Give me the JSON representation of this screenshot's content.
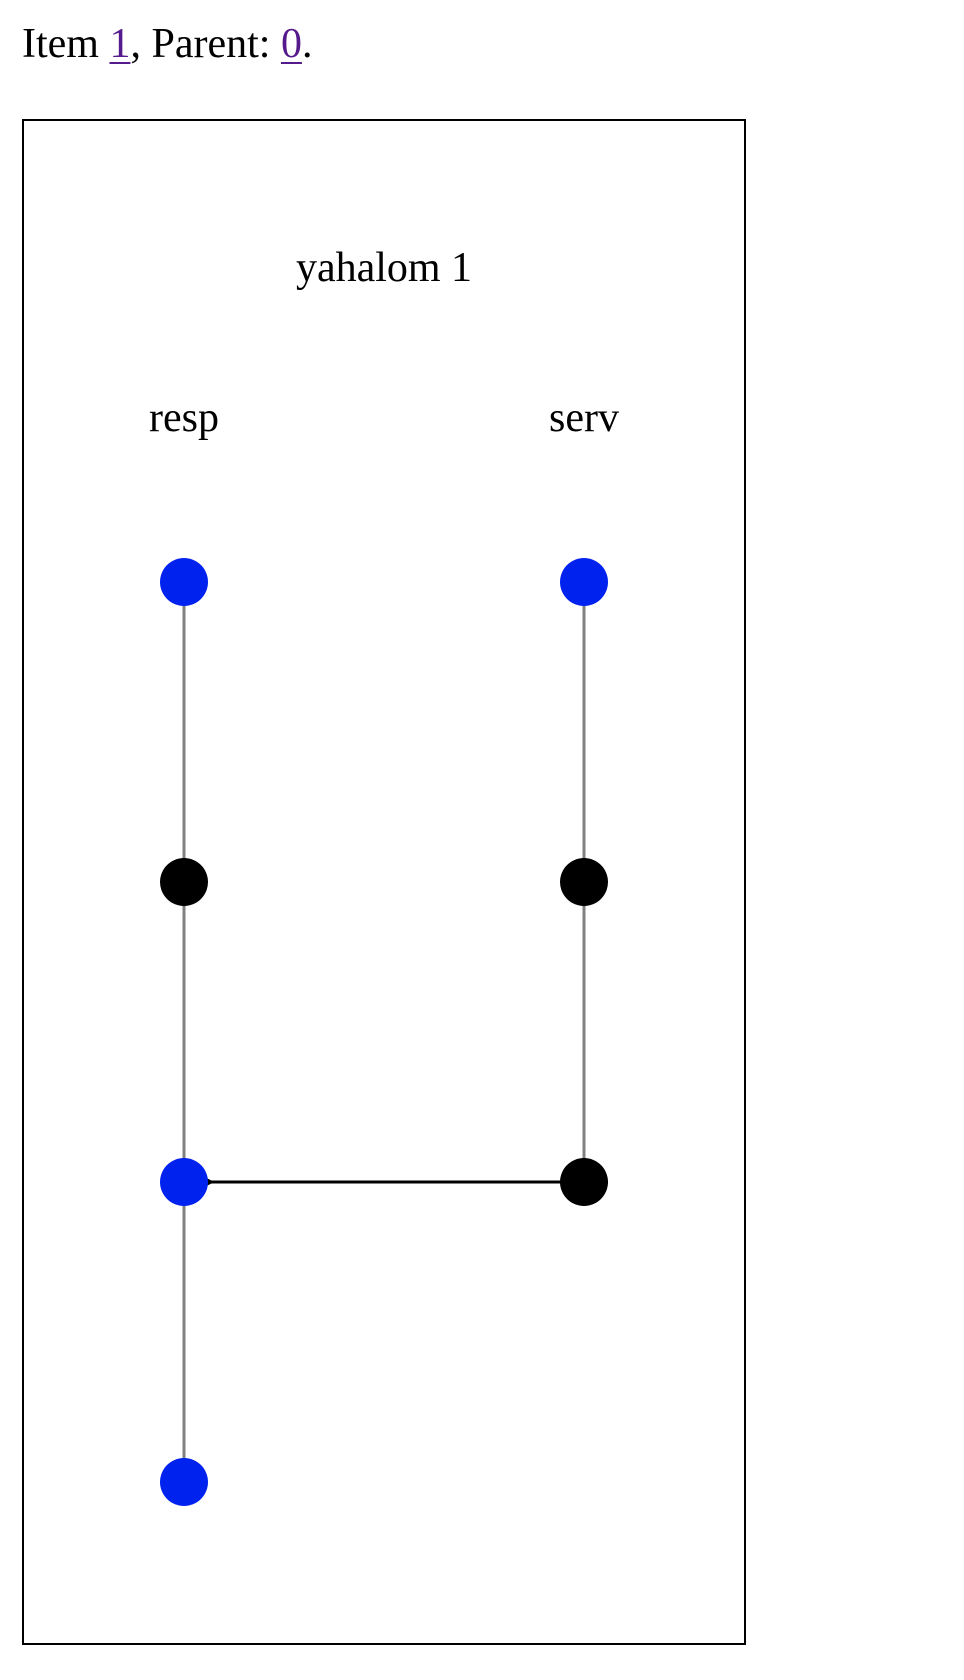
{
  "header": {
    "item_prefix": "Item ",
    "item_link": "1",
    "parent_prefix": ", Parent: ",
    "parent_link": "0",
    "suffix": "."
  },
  "diagram": {
    "title": "yahalom 1",
    "roles": [
      {
        "name": "resp",
        "nodes": [
          "blue",
          "black",
          "blue",
          "blue"
        ]
      },
      {
        "name": "serv",
        "nodes": [
          "blue",
          "black",
          "black"
        ]
      }
    ],
    "messages": [
      {
        "from_role": 1,
        "from_node": 2,
        "to_role": 0,
        "to_node": 2
      }
    ],
    "colors": {
      "blue": "#0022ee",
      "black": "#000000",
      "lifeline": "#808080",
      "arrow": "#000000",
      "frame": "#000000"
    }
  }
}
